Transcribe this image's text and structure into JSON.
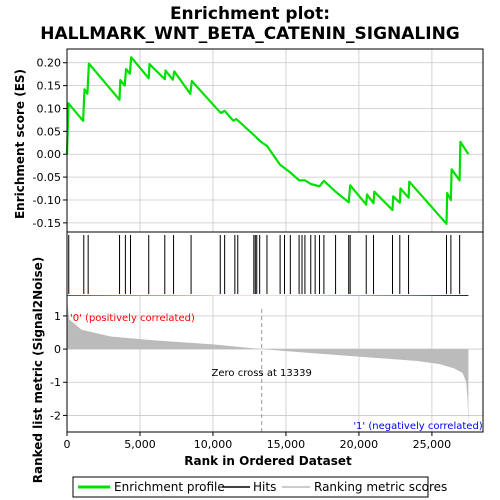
{
  "chart_data": {
    "type": "line",
    "title_line1": "Enrichment plot:",
    "title_line2": "HALLMARK_WNT_BETA_CATENIN_SIGNALING",
    "ylabel_top": "Enrichment score (ES)",
    "ylabel_bottom": "Ranked list metric (Signal2Noise)",
    "xlabel": "Rank in Ordered Dataset",
    "xlim": [
      0,
      28500
    ],
    "x_ticks": [
      "0",
      "5,000",
      "10,000",
      "15,000",
      "20,000",
      "25,000"
    ],
    "x_tick_values": [
      0,
      5000,
      10000,
      15000,
      20000,
      25000
    ],
    "top_ylim": [
      -0.17,
      0.23
    ],
    "top_y_ticks": [
      "0.20",
      "0.15",
      "0.10",
      "0.05",
      "0.00",
      "-0.05",
      "-0.10",
      "-0.15"
    ],
    "top_y_tick_values": [
      0.2,
      0.15,
      0.1,
      0.05,
      0.0,
      -0.05,
      -0.1,
      -0.15
    ],
    "bottom_ylim": [
      -2.5,
      1.6
    ],
    "bottom_y_ticks": [
      "1",
      "0",
      "-1",
      "-2"
    ],
    "bottom_y_tick_values": [
      1,
      0,
      -1,
      -2
    ],
    "zero_cross_label": "Zero cross at 13339",
    "zero_cross_rank": 13339,
    "positive_label": "'0' (positively correlated)",
    "negative_label": "'1' (negatively correlated)",
    "dataset_size": 27500,
    "hits": [
      120,
      1150,
      1450,
      3600,
      4000,
      4350,
      5600,
      6700,
      7300,
      8500,
      10500,
      10800,
      11500,
      11700,
      12800,
      12900,
      13000,
      13200,
      13700,
      14600,
      14900,
      15300,
      15900,
      16100,
      16300,
      16700,
      17000,
      17300,
      17600,
      18400,
      19300,
      19400,
      20500,
      21000,
      22300,
      22800,
      23400,
      26000,
      26300,
      26900
    ],
    "es_points": [
      [
        0,
        0.0
      ],
      [
        100,
        0.111
      ],
      [
        1100,
        0.073
      ],
      [
        1200,
        0.142
      ],
      [
        1400,
        0.132
      ],
      [
        1500,
        0.198
      ],
      [
        3600,
        0.119
      ],
      [
        3650,
        0.162
      ],
      [
        3950,
        0.15
      ],
      [
        4050,
        0.186
      ],
      [
        4300,
        0.176
      ],
      [
        4400,
        0.212
      ],
      [
        5600,
        0.166
      ],
      [
        5650,
        0.197
      ],
      [
        6700,
        0.164
      ],
      [
        6750,
        0.183
      ],
      [
        7250,
        0.163
      ],
      [
        7350,
        0.181
      ],
      [
        8450,
        0.132
      ],
      [
        8550,
        0.16
      ],
      [
        10450,
        0.093
      ],
      [
        10550,
        0.09
      ],
      [
        10800,
        0.095
      ],
      [
        11400,
        0.073
      ],
      [
        11600,
        0.077
      ],
      [
        12800,
        0.042
      ],
      [
        13300,
        0.027
      ],
      [
        13700,
        0.018
      ],
      [
        14600,
        -0.023
      ],
      [
        15300,
        -0.04
      ],
      [
        15900,
        -0.057
      ],
      [
        16300,
        -0.057
      ],
      [
        16700,
        -0.065
      ],
      [
        17300,
        -0.07
      ],
      [
        17600,
        -0.058
      ],
      [
        18400,
        -0.082
      ],
      [
        19300,
        -0.105
      ],
      [
        19400,
        -0.068
      ],
      [
        20500,
        -0.11
      ],
      [
        20550,
        -0.088
      ],
      [
        21000,
        -0.107
      ],
      [
        21050,
        -0.082
      ],
      [
        22300,
        -0.122
      ],
      [
        22350,
        -0.092
      ],
      [
        22800,
        -0.106
      ],
      [
        22850,
        -0.075
      ],
      [
        23400,
        -0.095
      ],
      [
        23450,
        -0.06
      ],
      [
        26000,
        -0.152
      ],
      [
        26050,
        -0.085
      ],
      [
        26300,
        -0.1
      ],
      [
        26350,
        -0.033
      ],
      [
        26900,
        -0.057
      ],
      [
        26950,
        0.027
      ],
      [
        27500,
        0.0
      ]
    ],
    "metric_points": [
      [
        0,
        1.5
      ],
      [
        150,
        0.9
      ],
      [
        1000,
        0.58
      ],
      [
        3000,
        0.38
      ],
      [
        6000,
        0.26
      ],
      [
        10000,
        0.14
      ],
      [
        13339,
        0.0
      ],
      [
        17000,
        -0.13
      ],
      [
        21000,
        -0.26
      ],
      [
        24000,
        -0.36
      ],
      [
        25500,
        -0.45
      ],
      [
        26500,
        -0.58
      ],
      [
        27100,
        -0.72
      ],
      [
        27350,
        -1.0
      ],
      [
        27450,
        -1.6
      ],
      [
        27500,
        -2.4
      ]
    ],
    "legend": [
      "Enrichment profile",
      "Hits",
      "Ranking metric scores"
    ],
    "colors": {
      "es_line": "#00e000",
      "hits": "#000000",
      "metric_fill": "#bbbbbb",
      "grid": "#c8c8c8",
      "positive_label": "#ff0000",
      "negative_label": "#0000ff"
    }
  }
}
